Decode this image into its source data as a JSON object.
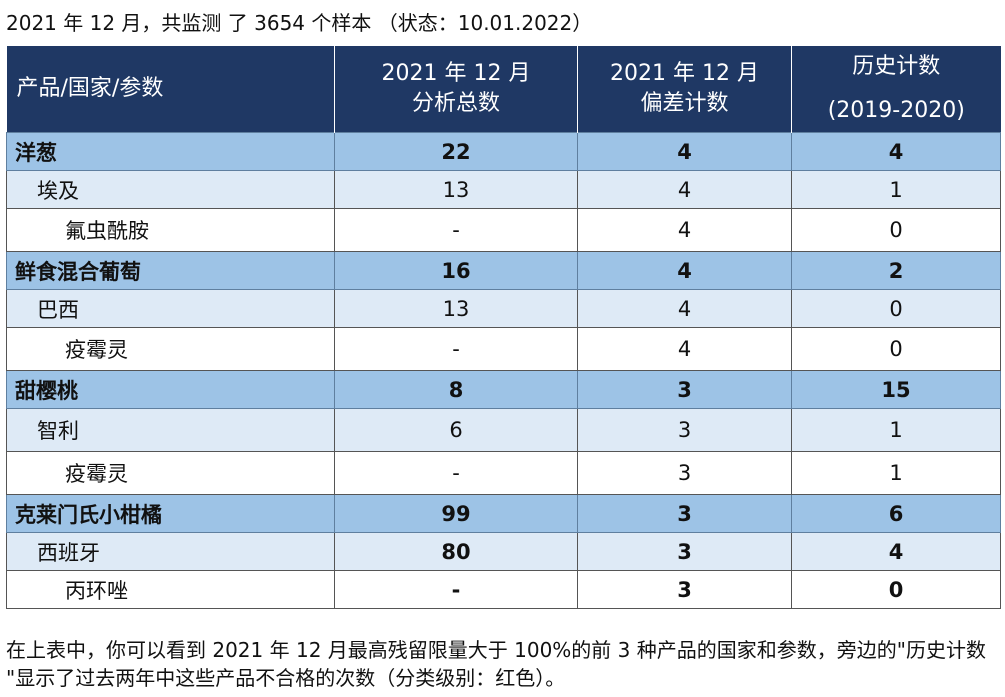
{
  "caption": "2021 年 12 月，共监测 了 3654 个样本 （状态：10.01.2022）",
  "header": {
    "col1": "产品/国家/参数",
    "col2_line1": "2021 年 12 月",
    "col2_line2": "分析总数",
    "col3_line1": "2021 年 12 月",
    "col3_line2": "偏差计数",
    "col4_line1": "历史计数",
    "col4_line2": "(2019-2020)"
  },
  "rows": [
    {
      "name": "洋葱",
      "total": "22",
      "deviation": "4",
      "history": "4"
    },
    {
      "name": "埃及",
      "total": "13",
      "deviation": "4",
      "history": "1"
    },
    {
      "name": "氟虫酰胺",
      "total": "-",
      "deviation": "4",
      "history": "0"
    },
    {
      "name": "鲜食混合葡萄",
      "total": "16",
      "deviation": "4",
      "history": "2"
    },
    {
      "name": "巴西",
      "total": "13",
      "deviation": "4",
      "history": "0"
    },
    {
      "name": "疫霉灵",
      "total": "-",
      "deviation": "4",
      "history": "0"
    },
    {
      "name": "甜樱桃",
      "total": "8",
      "deviation": "3",
      "history": "15"
    },
    {
      "name": "智利",
      "total": "6",
      "deviation": "3",
      "history": "1"
    },
    {
      "name": "疫霉灵",
      "total": "-",
      "deviation": "3",
      "history": "1"
    },
    {
      "name": "克莱门氏小柑橘",
      "total": "99",
      "deviation": "3",
      "history": "6"
    },
    {
      "name": "西班牙",
      "total": "80",
      "deviation": "3",
      "history": "4"
    },
    {
      "name": "丙环唑",
      "total": "-",
      "deviation": "3",
      "history": "0"
    }
  ],
  "note": "在上表中，你可以看到 2021 年 12 月最高残留限量大于 100%的前 3 种产品的国家和参数，旁边的\"历史计数 \"显示了过去两年中这些产品不合格的次数（分类级别：红色）。"
}
